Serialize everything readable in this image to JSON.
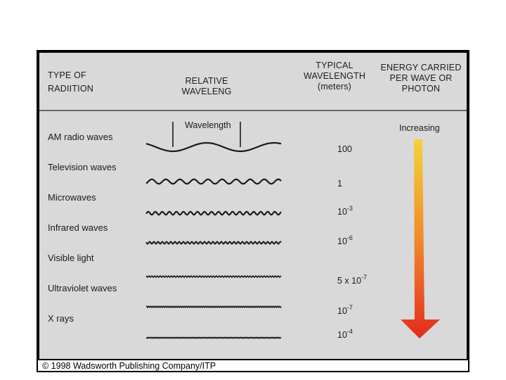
{
  "headers": {
    "type_line1": "TYPE OF",
    "type_line2": "RADIITION",
    "relative_line1": "RELATIVE",
    "relative_line2": "WAVELENG",
    "typical_line1": "TYPICAL",
    "typical_line2": "WAVELENGTH",
    "typical_line3": "(meters)",
    "energy_line1": "ENERGY CARRIED",
    "energy_line2": "PER WAVE OR",
    "energy_line3": "PHOTON"
  },
  "wavelength_tag": "Wavelength",
  "increasing_label": "Increasing",
  "rows": [
    {
      "name": "AM radio waves",
      "base": "100",
      "exp": ""
    },
    {
      "name": "Television waves",
      "base": "1",
      "exp": ""
    },
    {
      "name": "Microwaves",
      "base": "10",
      "exp": "-3"
    },
    {
      "name": "Infrared waves",
      "base": "10",
      "exp": "-6"
    },
    {
      "name": "Visible light",
      "base": "5 x 10",
      "exp": "-7"
    },
    {
      "name": "Ultraviolet waves",
      "base": "10",
      "exp": "-7"
    },
    {
      "name": "X rays",
      "base": "10",
      "exp": "-4"
    }
  ],
  "colors": {
    "arrow_top": "#f4d23a",
    "arrow_mid": "#f08a2a",
    "arrow_bottom": "#e32b1f"
  },
  "copyright": "© 1998 Wadsworth Publishing Company/ITP"
}
